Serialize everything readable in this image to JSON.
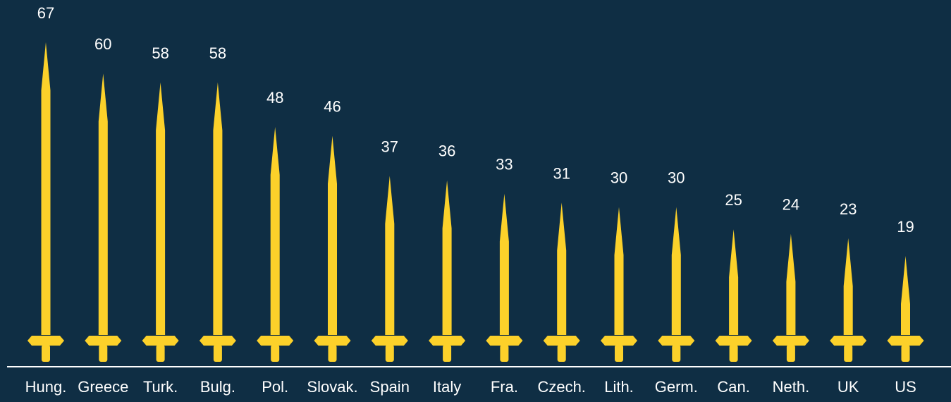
{
  "chart_data": {
    "type": "bar",
    "categories": [
      "Hung.",
      "Greece",
      "Turk.",
      "Bulg.",
      "Pol.",
      "Slovak.",
      "Spain",
      "Italy",
      "Fra.",
      "Czech.",
      "Lith.",
      "Germ.",
      "Can.",
      "Neth.",
      "UK",
      "US"
    ],
    "values": [
      67,
      60,
      58,
      58,
      48,
      46,
      37,
      36,
      33,
      31,
      30,
      30,
      25,
      24,
      23,
      19
    ],
    "title": "",
    "xlabel": "",
    "ylabel": "",
    "ylim": [
      0,
      67
    ],
    "grid": false,
    "legend": "none",
    "mark_style": "sword",
    "colors": {
      "background": "#0f2e44",
      "bar": "#fcd12a",
      "text": "#ffffff",
      "axis": "#ffffff"
    }
  }
}
